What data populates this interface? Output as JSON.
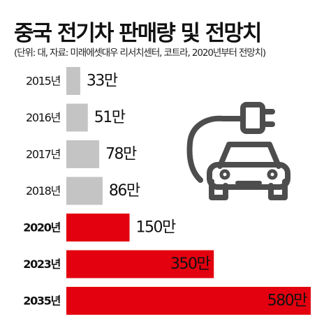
{
  "chart_data": {
    "type": "bar",
    "orientation": "horizontal",
    "title": "중국 전기차 판매량 및 전망치",
    "subtitle": "(단위: 대, 자료: 미래에셋대우 리서치센터, 코트라, 2020년부터 전망치)",
    "categories": [
      "2015년",
      "2016년",
      "2017년",
      "2018년",
      "2020년",
      "2023년",
      "2035년"
    ],
    "values": [
      33,
      51,
      78,
      86,
      150,
      350,
      580
    ],
    "value_labels": [
      "33만",
      "51만",
      "78만",
      "86만",
      "150만",
      "350만",
      "580만"
    ],
    "unit": "만",
    "forecast": [
      false,
      false,
      false,
      false,
      true,
      true,
      true
    ],
    "legend": "none",
    "grid": false
  },
  "colors": {
    "actual_bar": "#c4c4c4",
    "forecast_bar": "#e3000f",
    "icon_stroke": "#4d4d4d",
    "highlight_value_text": "#ffffff",
    "value_text": "#111111"
  },
  "icon": "electric-car-plug-icon"
}
